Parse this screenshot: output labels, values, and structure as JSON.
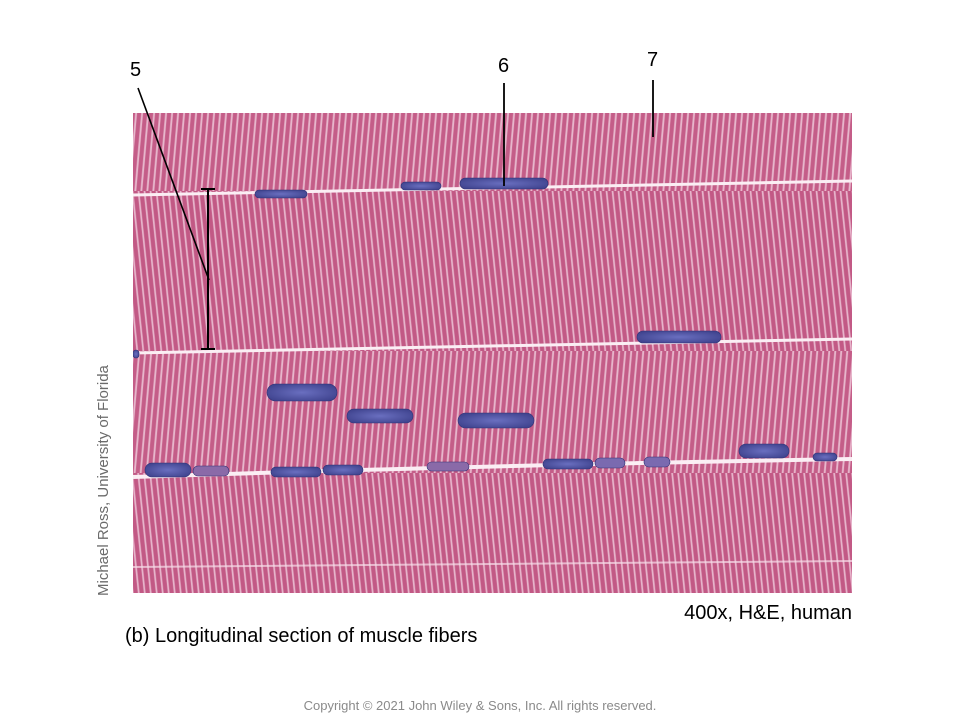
{
  "figure": {
    "labels": [
      "5",
      "6",
      "7"
    ],
    "image_credit": "Michael Ross, University of Florida",
    "magnification": "400x, H&E, human",
    "caption": "(b) Longitudinal section of muscle fibers",
    "copyright": "Copyright © 2021 John Wiley & Sons, Inc. All rights reserved."
  },
  "colors": {
    "tissue_pink": "#c8608a",
    "striation_light": "#f0c6d8",
    "nucleus_blue": "#4a4f9e",
    "fiber_boundary": "#fbeef4"
  }
}
